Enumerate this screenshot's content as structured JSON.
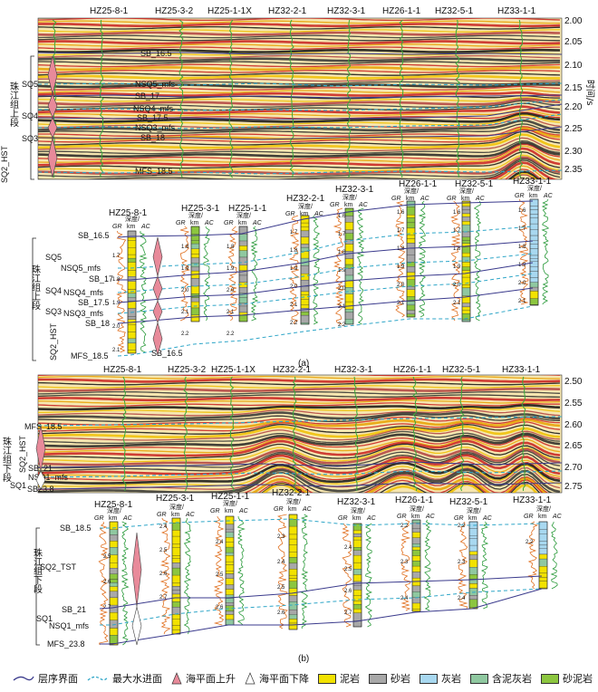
{
  "panel_a": {
    "seismic_wells": [
      "HZ25-8-1",
      "HZ25-3-2",
      "HZ25-1-1X",
      "HZ32-2-1",
      "HZ32-3-1",
      "HZ26-1-1",
      "HZ32-5-1",
      "HZ33-1-1"
    ],
    "time_ticks": [
      "2.00",
      "2.05",
      "2.10",
      "2.15",
      "2.20",
      "2.25",
      "2.30",
      "2.35"
    ],
    "time_axis_label": "时间/s",
    "seismic_surfaces": [
      "SB_16.5",
      "NSQ5_mfs",
      "SB_17",
      "NSQ4_mfs",
      "SB_17.5",
      "NSQ3_mfs",
      "SB_18",
      "MFS_18.5"
    ],
    "seq_labels": [
      "SQ5",
      "SQ4",
      "SQ3",
      "SQ2_HST"
    ],
    "formation": "珠江组上段",
    "log_wells": [
      "HZ25-8-1",
      "HZ25-3-1",
      "HZ25-1-1",
      "HZ32-2-1",
      "HZ32-3-1",
      "HZ26-1-1",
      "HZ32-5-1",
      "HZ33-1-1"
    ],
    "log_header": {
      "gr": "GR",
      "depth": "深度/",
      "unit": "km",
      "ac": "AC"
    },
    "log_surfaces": [
      "SB_16.5",
      "NSQ5_mfs",
      "SB_17",
      "NSQ4_mfs",
      "SB_17.5",
      "NSQ3_mfs",
      "SB_18",
      "MFS_18.5"
    ],
    "log_bottom_label": "SB_16.5",
    "depth_ticks": [
      "1.6",
      "1.7",
      "1.8",
      "1.9",
      "2.0",
      "2.1",
      "2.2"
    ],
    "caption": "(a)"
  },
  "panel_b": {
    "seismic_wells": [
      "HZ25-8-1",
      "HZ25-3-2",
      "HZ25-1-1X",
      "HZ32-2-1",
      "HZ32-3-1",
      "HZ26-1-1",
      "HZ32-5-1",
      "HZ33-1-1"
    ],
    "time_ticks": [
      "2.50",
      "2.55",
      "2.60",
      "2.65",
      "2.70",
      "2.75"
    ],
    "seismic_surfaces": [
      "MFS_18.5",
      "SB_21",
      "NSQ1_mfs",
      "SB23.8"
    ],
    "seq_labels": [
      "SQ2_HST",
      "SQ1"
    ],
    "formation": "珠江组下段",
    "log_wells": [
      "HZ25-8-1",
      "HZ25-3-1",
      "HZ25-1-1",
      "HZ32-2-1",
      "HZ32-3-1",
      "HZ26-1-1",
      "HZ32-5-1",
      "HZ33-1-1"
    ],
    "log_surfaces": [
      "SB_18.5",
      "SB_21",
      "NSQ1_mfs",
      "MFS_23.8"
    ],
    "log_seq_labels": [
      "SQ2_TST",
      "SQ1"
    ],
    "depth_ticks": [
      "2.2",
      "2.3",
      "2.4",
      "2.5",
      "2.6",
      "2.7"
    ],
    "caption": "(b)"
  },
  "legend": [
    {
      "label": "层序界面",
      "type": "line",
      "color": "#3a3a8c"
    },
    {
      "label": "最大水进面",
      "type": "dash",
      "color": "#2fa6c8"
    },
    {
      "label": "海平面上升",
      "type": "up",
      "color": "#e88a9a"
    },
    {
      "label": "海平面下降",
      "type": "down",
      "color": "#ffffff"
    },
    {
      "label": "泥岩",
      "type": "fill",
      "color": "#f2e200"
    },
    {
      "label": "砂岩",
      "type": "fill",
      "color": "#a8a8a8"
    },
    {
      "label": "灰岩",
      "type": "fill",
      "color": "#a8d8f0"
    },
    {
      "label": "含泥灰岩",
      "type": "fill",
      "color": "#8fc8a0"
    },
    {
      "label": "砂泥岩",
      "type": "fill",
      "color": "#8cc63f"
    }
  ]
}
